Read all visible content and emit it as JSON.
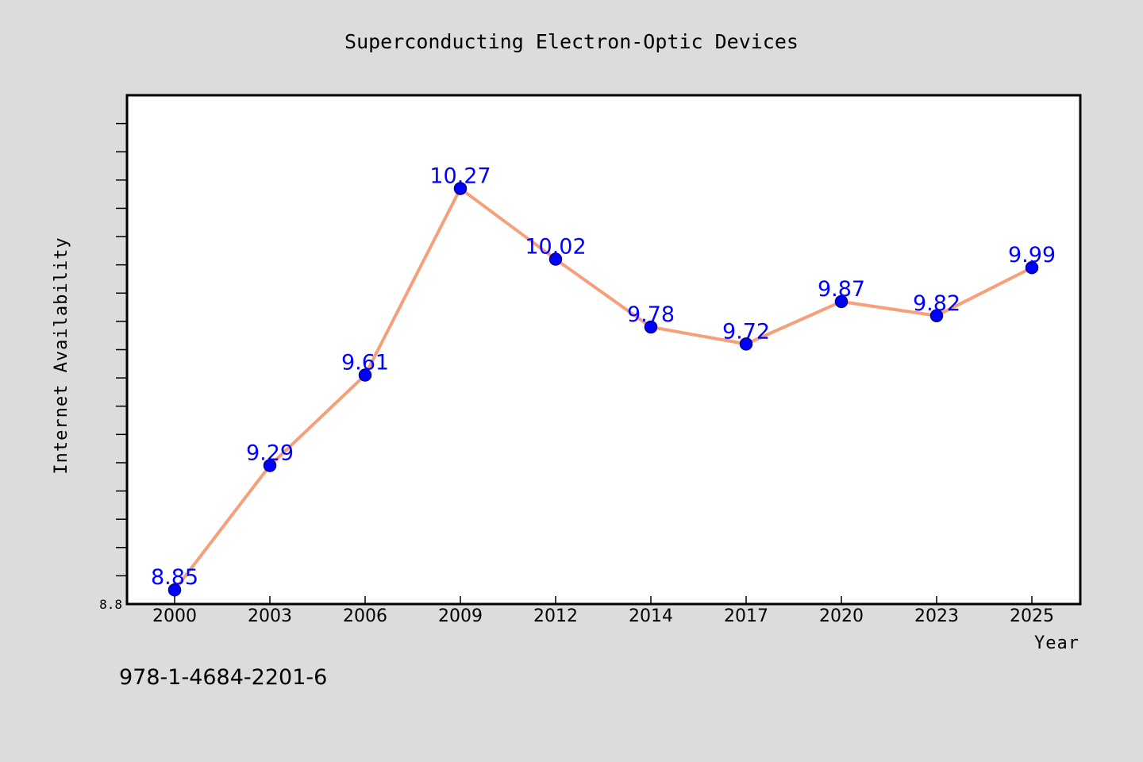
{
  "chart_data": {
    "type": "line",
    "title": "Superconducting Electron-Optic Devices",
    "xlabel": "Year",
    "ylabel": "Internet Availability",
    "categories": [
      "2000",
      "2003",
      "2006",
      "2009",
      "2012",
      "2014",
      "2017",
      "2020",
      "2023",
      "2025"
    ],
    "series": [
      {
        "values": [
          8.85,
          9.29,
          9.61,
          10.27,
          10.02,
          9.78,
          9.72,
          9.87,
          9.82,
          9.99
        ],
        "data_labels": [
          "8.85",
          "9.29",
          "9.61",
          "10.27",
          "10.02",
          "9.78",
          "9.72",
          "9.87",
          "9.82",
          "9.99"
        ]
      }
    ],
    "ytick_labels": [
      "8.8"
    ],
    "ylim": [
      8.8,
      10.6
    ],
    "grid": false,
    "colors": {
      "line": "#f5a07a",
      "marker_fill": "#0000ff",
      "marker_edge": "#00008b",
      "data_label": "#0000ff",
      "background": "#dcdcdc",
      "plot_background": "#ffffff"
    }
  },
  "footer": {
    "isbn": "978-1-4684-2201-6"
  }
}
